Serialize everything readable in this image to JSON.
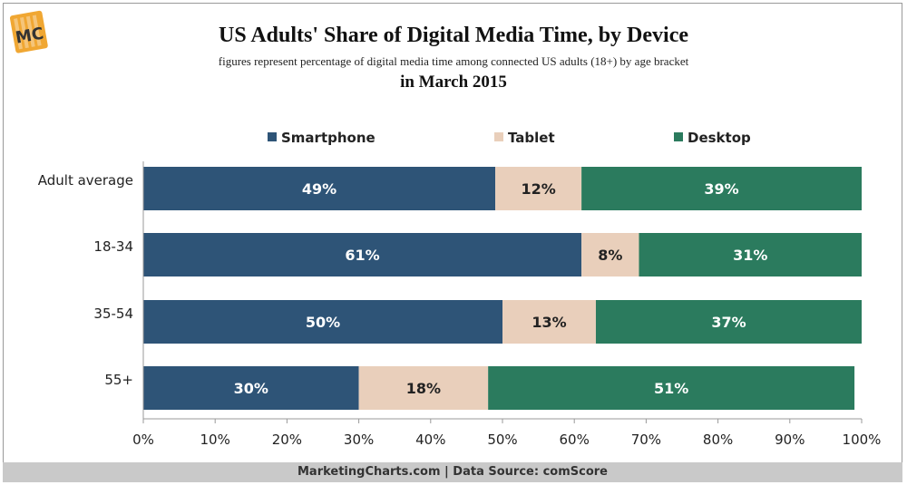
{
  "title": "US Adults' Share of Digital Media Time, by Device",
  "subtitle": "figures represent percentage of digital media time among connected US adults (18+) by age bracket",
  "subtitle2": "in March 2015",
  "logo_text": "MC",
  "footer": "MarketingCharts.com | Data Source: comScore",
  "colors": {
    "smartphone": "#2e5477",
    "tablet": "#e9cfbb",
    "desktop": "#2b7b5e",
    "logo_bg": "#f0a733"
  },
  "chart_data": {
    "type": "bar",
    "orientation": "horizontal",
    "stacked": true,
    "categories": [
      "Adult average",
      "18-34",
      "35-54",
      "55+"
    ],
    "series": [
      {
        "name": "Smartphone",
        "values": [
          49,
          61,
          50,
          30
        ]
      },
      {
        "name": "Tablet",
        "values": [
          12,
          8,
          13,
          18
        ]
      },
      {
        "name": "Desktop",
        "values": [
          39,
          31,
          37,
          51
        ]
      }
    ],
    "data_labels": [
      [
        "49%",
        "61%",
        "50%",
        "30%"
      ],
      [
        "12%",
        "8%",
        "13%",
        "18%"
      ],
      [
        "39%",
        "31%",
        "37%",
        "51%"
      ]
    ],
    "x_ticks": [
      "0%",
      "10%",
      "20%",
      "30%",
      "40%",
      "50%",
      "60%",
      "70%",
      "80%",
      "90%",
      "100%"
    ],
    "xlim": [
      0,
      100
    ],
    "legend_position": "top",
    "grid": false
  }
}
